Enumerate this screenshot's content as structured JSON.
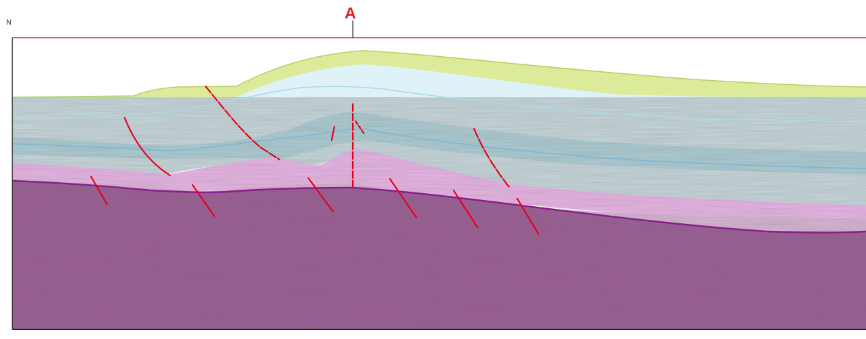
{
  "section": {
    "north_label": "N",
    "marker_label": "A",
    "colors": {
      "section_line": "#e02020",
      "marker": "#e02020",
      "fault": "#e8001c",
      "frame": "#222222",
      "layer_green": "#dbeb9a",
      "layer_green_dark": "#b6cf62",
      "layer_lightblue": "#dff2f7",
      "layer_seismic": "#c8d8dc",
      "layer_teal": "#9fcad0",
      "layer_blue": "#79b6d9",
      "layer_pink": "#eab5e6",
      "layer_pink_grey": "#d8b5d4",
      "basement": "#9a5a92",
      "basement_top": "#8b1e8c"
    }
  }
}
